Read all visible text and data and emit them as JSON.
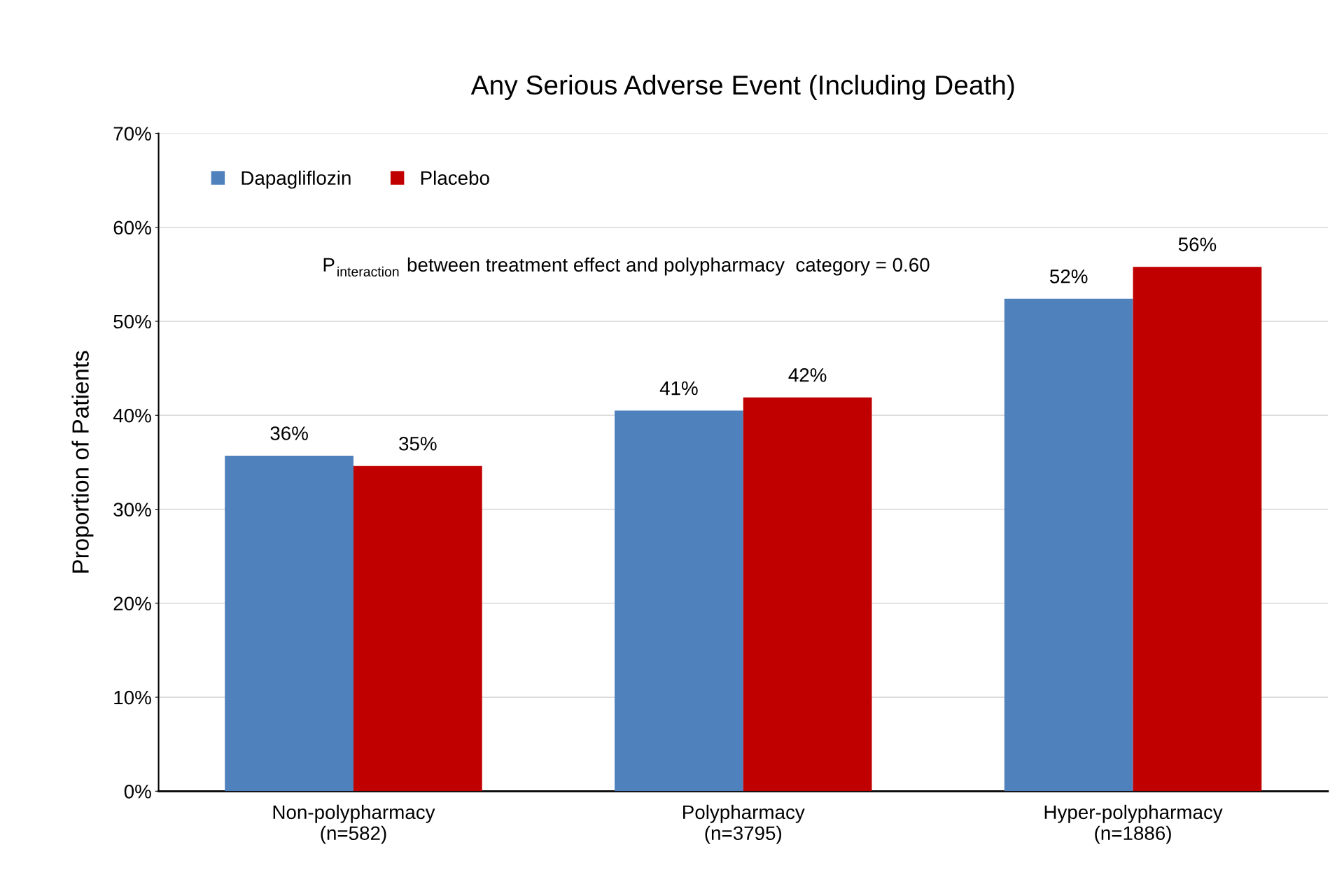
{
  "chart_data": {
    "type": "bar",
    "title": "Any Serious Adverse Event (Including Death)",
    "ylabel": "Proportion of Patients",
    "categories": [
      "Non-polypharmacy\n(n=582)",
      "Polypharmacy\n(n=3795)",
      "Hyper-polypharmacy\n(n=1886)"
    ],
    "series": [
      {
        "name": "Dapagliflozin",
        "color": "#4f81bd",
        "values": [
          35.7,
          40.5,
          52.4
        ],
        "value_labels": [
          "36%",
          "41%",
          "52%"
        ]
      },
      {
        "name": "Placebo",
        "color": "#c00000",
        "values": [
          34.6,
          41.9,
          55.8
        ],
        "value_labels": [
          "35%",
          "42%",
          "56%"
        ]
      }
    ],
    "ylim": [
      0,
      70
    ],
    "yticks": [
      {
        "value": 0,
        "label": "0%"
      },
      {
        "value": 10,
        "label": "10%"
      },
      {
        "value": 20,
        "label": "20%"
      },
      {
        "value": 30,
        "label": "30%"
      },
      {
        "value": 40,
        "label": "40%"
      },
      {
        "value": 50,
        "label": "50%"
      },
      {
        "value": 60,
        "label": "60%"
      },
      {
        "value": 70,
        "label": "70%"
      }
    ],
    "grid": "y",
    "legend": "top left",
    "annotations": [
      "P$_{interaction}$ between treatment effect and polypharmacy  category = 0.60"
    ]
  }
}
